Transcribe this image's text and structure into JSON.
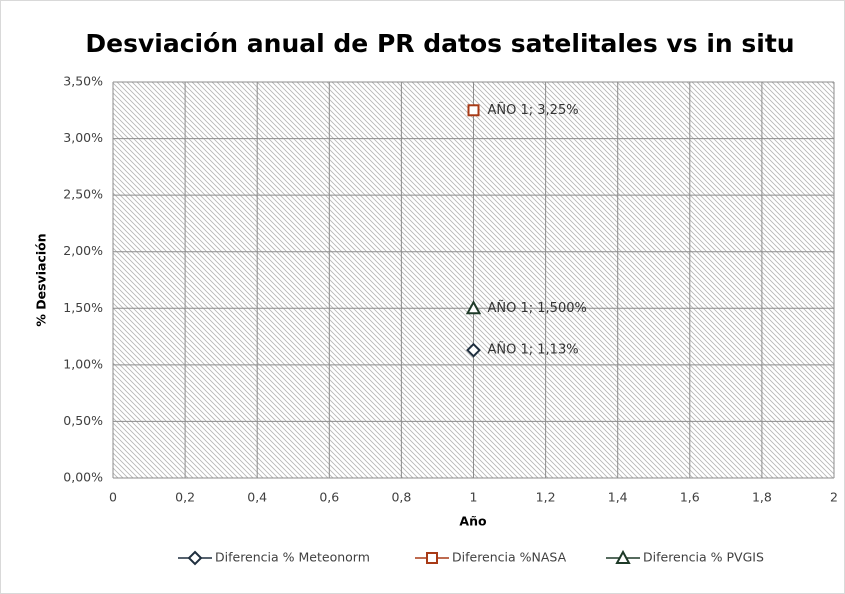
{
  "chart_data": {
    "type": "scatter",
    "title": "Desviación anual de PR datos satelitales vs in situ",
    "x_label": "Año",
    "y_label": "% Desviación",
    "xlim": [
      0,
      2
    ],
    "xticks": [
      0,
      {
        "value": 0.2,
        "label": "0,2"
      },
      {
        "value": 0.4,
        "label": "0,4"
      },
      {
        "value": 0.6,
        "label": "0,6"
      },
      {
        "value": 0.8,
        "label": "0,8"
      },
      1,
      {
        "value": 1.2,
        "label": "1,2"
      },
      {
        "value": 1.4,
        "label": "1,4"
      },
      {
        "value": 1.6,
        "label": "1,6"
      },
      {
        "value": 1.8,
        "label": "1,8"
      },
      2
    ],
    "ylim": [
      0,
      3.5
    ],
    "yticks": [
      {
        "value": 0,
        "label": "0,00%"
      },
      {
        "value": 0.5,
        "label": "0,50%"
      },
      {
        "value": 1,
        "label": "1,00%"
      },
      {
        "value": 1.5,
        "label": "1,50%"
      },
      {
        "value": 2,
        "label": "2,00%"
      },
      {
        "value": 2.5,
        "label": "2,50%"
      },
      {
        "value": 3,
        "label": "3,00%"
      },
      {
        "value": 3.5,
        "label": "3,50%"
      }
    ],
    "grid": true,
    "legend": "bottom",
    "series": [
      {
        "name": "Diferencia % Meteonorm",
        "color": "#1f2f3f",
        "marker": "diamond",
        "x": [
          1
        ],
        "values": [
          1.13
        ],
        "value_labels": [
          "AÑO 1; 1,13%"
        ]
      },
      {
        "name": "Diferencia %NASA",
        "color": "#a83a16",
        "marker": "square",
        "x": [
          1
        ],
        "values": [
          3.25
        ],
        "value_labels": [
          "AÑO 1; 3,25%"
        ]
      },
      {
        "name": "Diferencia % PVGIS",
        "color": "#1e3a28",
        "marker": "triangle",
        "x": [
          1
        ],
        "values": [
          1.5
        ],
        "value_labels": [
          "AÑO 1; 1,500%"
        ]
      }
    ]
  }
}
